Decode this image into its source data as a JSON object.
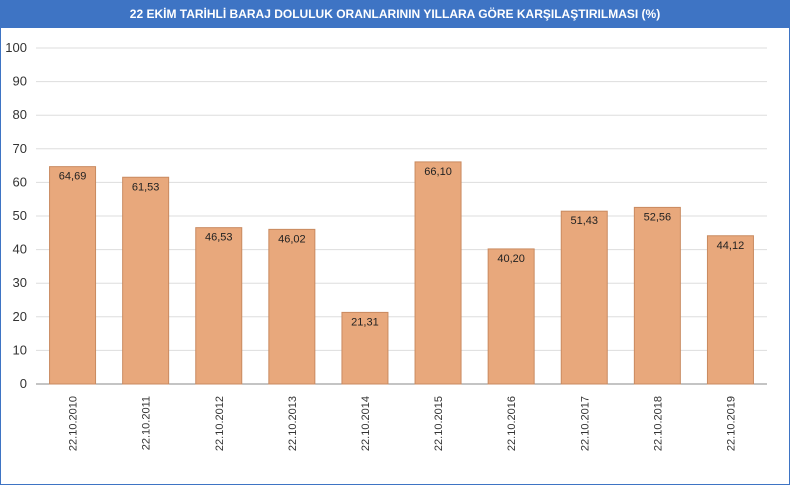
{
  "chart_data": {
    "type": "bar",
    "title": "22 EKİM TARİHLİ BARAJ DOLULUK ORANLARININ YILLARA GÖRE KARŞILAŞTIRILMASI (%)",
    "categories": [
      "22.10.2010",
      "22.10.2011",
      "22.10.2012",
      "22.10.2013",
      "22.10.2014",
      "22.10.2015",
      "22.10.2016",
      "22.10.2017",
      "22.10.2018",
      "22.10.2019"
    ],
    "values": [
      64.69,
      61.53,
      46.53,
      46.02,
      21.31,
      66.1,
      40.2,
      51.43,
      52.56,
      44.12
    ],
    "value_labels": [
      "64,69",
      "61,53",
      "46,53",
      "46,02",
      "21,31",
      "66,10",
      "40,20",
      "51,43",
      "52,56",
      "44,12"
    ],
    "yticks": [
      "0",
      "10",
      "20",
      "30",
      "40",
      "50",
      "60",
      "70",
      "80",
      "90",
      "100"
    ],
    "ylim": [
      0,
      100
    ],
    "grid": true,
    "colors": {
      "bar": "#e8a87c",
      "bar_stroke": "#c98a60",
      "header": "#3e74c4",
      "grid": "#dddddd"
    }
  }
}
